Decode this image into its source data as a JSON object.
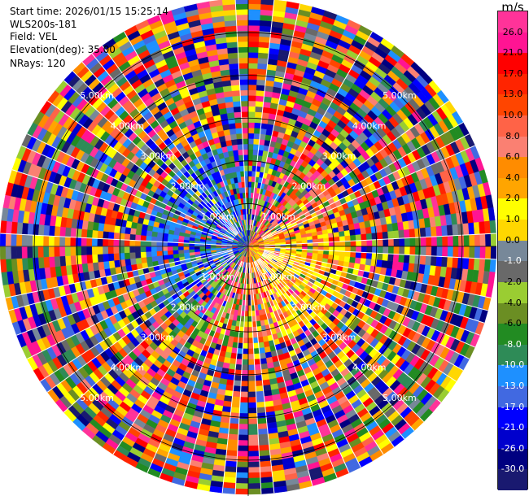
{
  "header": {
    "start_time": "Start time: 2026/01/15 15:25:14",
    "station": "WLS200s-181",
    "field": "Field: VEL",
    "elevation": "Elevation(deg): 35.00",
    "nrays": "NRays: 120"
  },
  "chart_data": {
    "type": "heatmap",
    "projection": "polar-ppi",
    "field": "VEL",
    "n_rays": 120,
    "range_rings_km": [
      1.0,
      2.0,
      3.0,
      4.0,
      5.0
    ],
    "ring_labels": [
      "1.00km",
      "2.00km",
      "3.00km",
      "4.00km",
      "5.00km"
    ],
    "max_range_km": 5.8,
    "colorbar": {
      "unit": "m/s",
      "ticks": [
        "26.0",
        "21.0",
        "17.0",
        "13.0",
        "10.0",
        "8.0",
        "6.0",
        "4.0",
        "2.0",
        "1.0",
        "0.0",
        "-1.0",
        "-2.0",
        "-4.0",
        "-6.0",
        "-8.0",
        "-10.0",
        "-13.0",
        "-17.0",
        "-21.0",
        "-26.0",
        "-30.0"
      ],
      "colors": [
        "#ff3399",
        "#ff1493",
        "#ff0000",
        "#ff2400",
        "#ff4500",
        "#ff6347",
        "#fa8072",
        "#ff8c00",
        "#ffa500",
        "#ffff00",
        "#ffd700",
        "#778899",
        "#696969",
        "#9acd32",
        "#6b8e23",
        "#228b22",
        "#2e8b57",
        "#1e90ff",
        "#4169e1",
        "#0000ff",
        "#0000cd",
        "#000080",
        "#191970"
      ]
    }
  }
}
